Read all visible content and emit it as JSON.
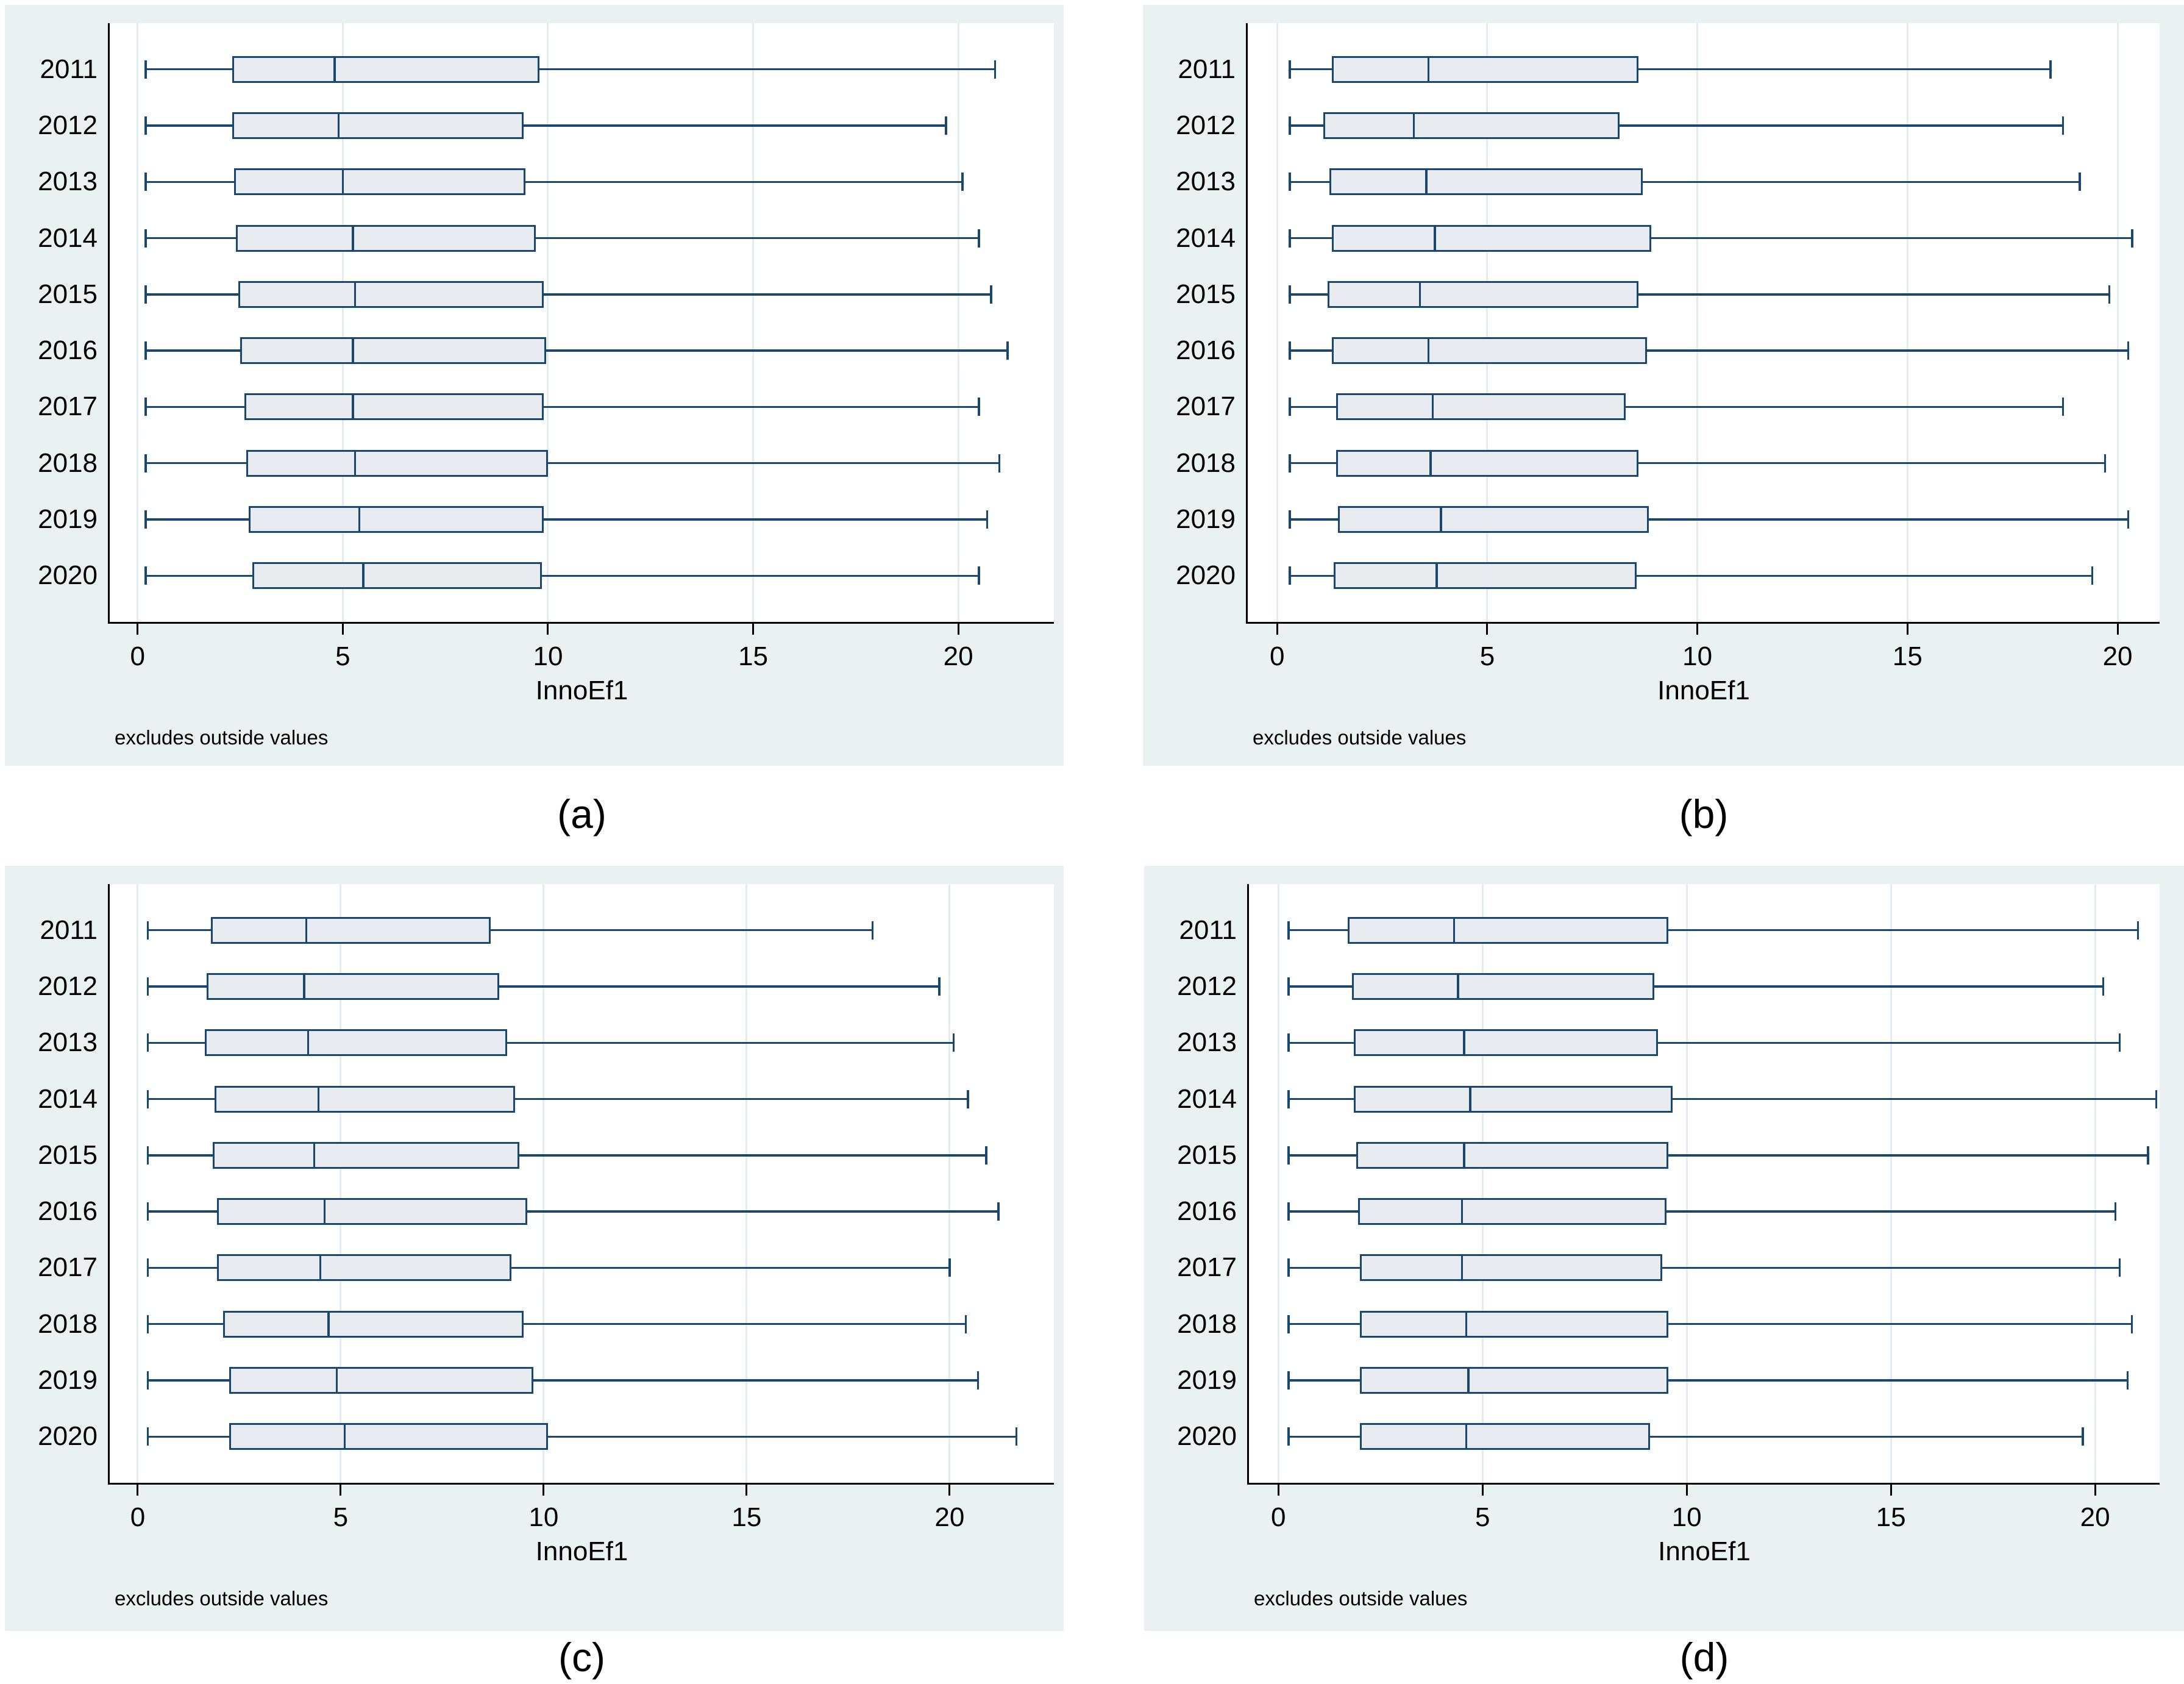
{
  "colors": {
    "panel_background": "#eaf1f3",
    "plot_background": "#ffffff",
    "grid_line": "#e2edf2",
    "axis_line": "#000000",
    "box_border": "#1a476f",
    "box_fill": "#e8ecf1",
    "text": "#000000"
  },
  "chart_data": [
    {
      "type": "box",
      "orientation": "horizontal",
      "caption": "(a)",
      "xlabel": "InnoEf1",
      "note": "excludes outside values",
      "categories": [
        "2011",
        "2012",
        "2013",
        "2014",
        "2015",
        "2016",
        "2017",
        "2018",
        "2019",
        "2020"
      ],
      "x_ticks": [
        0,
        5,
        10,
        15,
        20
      ],
      "xlim": [
        -0.68,
        22.33
      ],
      "grid": true,
      "boxes": [
        {
          "low": 0.2,
          "q1": 2.3,
          "median": 4.8,
          "q3": 9.8,
          "high": 20.9
        },
        {
          "low": 0.2,
          "q1": 2.3,
          "median": 4.9,
          "q3": 9.4,
          "high": 19.7
        },
        {
          "low": 0.2,
          "q1": 2.35,
          "median": 5.0,
          "q3": 9.45,
          "high": 20.1
        },
        {
          "low": 0.2,
          "q1": 2.4,
          "median": 5.25,
          "q3": 9.7,
          "high": 20.5
        },
        {
          "low": 0.2,
          "q1": 2.45,
          "median": 5.3,
          "q3": 9.9,
          "high": 20.8
        },
        {
          "low": 0.2,
          "q1": 2.5,
          "median": 5.25,
          "q3": 9.95,
          "high": 21.2
        },
        {
          "low": 0.2,
          "q1": 2.6,
          "median": 5.25,
          "q3": 9.9,
          "high": 20.5
        },
        {
          "low": 0.2,
          "q1": 2.65,
          "median": 5.3,
          "q3": 10.0,
          "high": 21.0
        },
        {
          "low": 0.2,
          "q1": 2.7,
          "median": 5.4,
          "q3": 9.9,
          "high": 20.7
        },
        {
          "low": 0.2,
          "q1": 2.8,
          "median": 5.5,
          "q3": 9.85,
          "high": 20.5
        }
      ]
    },
    {
      "type": "box",
      "orientation": "horizontal",
      "caption": "(b)",
      "xlabel": "InnoEf1",
      "note": "excludes outside values",
      "categories": [
        "2011",
        "2012",
        "2013",
        "2014",
        "2015",
        "2016",
        "2017",
        "2018",
        "2019",
        "2020"
      ],
      "x_ticks": [
        0,
        5,
        10,
        15,
        20
      ],
      "xlim": [
        -0.7,
        21.0
      ],
      "grid": true,
      "boxes": [
        {
          "low": 0.3,
          "q1": 1.3,
          "median": 3.6,
          "q3": 8.6,
          "high": 18.4
        },
        {
          "low": 0.3,
          "q1": 1.1,
          "median": 3.25,
          "q3": 8.15,
          "high": 18.7
        },
        {
          "low": 0.3,
          "q1": 1.25,
          "median": 3.55,
          "q3": 8.7,
          "high": 19.1
        },
        {
          "low": 0.3,
          "q1": 1.3,
          "median": 3.75,
          "q3": 8.9,
          "high": 20.35
        },
        {
          "low": 0.3,
          "q1": 1.2,
          "median": 3.4,
          "q3": 8.6,
          "high": 19.8
        },
        {
          "low": 0.3,
          "q1": 1.3,
          "median": 3.6,
          "q3": 8.8,
          "high": 20.25
        },
        {
          "low": 0.3,
          "q1": 1.4,
          "median": 3.7,
          "q3": 8.3,
          "high": 18.7
        },
        {
          "low": 0.3,
          "q1": 1.4,
          "median": 3.65,
          "q3": 8.6,
          "high": 19.7
        },
        {
          "low": 0.3,
          "q1": 1.45,
          "median": 3.9,
          "q3": 8.85,
          "high": 20.25
        },
        {
          "low": 0.3,
          "q1": 1.35,
          "median": 3.8,
          "q3": 8.55,
          "high": 19.4
        }
      ]
    },
    {
      "type": "box",
      "orientation": "horizontal",
      "caption": "(c)",
      "xlabel": "InnoEf1",
      "note": "excludes outside values",
      "categories": [
        "2011",
        "2012",
        "2013",
        "2014",
        "2015",
        "2016",
        "2017",
        "2018",
        "2019",
        "2020"
      ],
      "x_ticks": [
        0,
        5,
        10,
        15,
        20
      ],
      "xlim": [
        -0.69,
        22.57
      ],
      "grid": true,
      "boxes": [
        {
          "low": 0.25,
          "q1": 1.8,
          "median": 4.15,
          "q3": 8.7,
          "high": 18.1
        },
        {
          "low": 0.25,
          "q1": 1.7,
          "median": 4.1,
          "q3": 8.9,
          "high": 19.75
        },
        {
          "low": 0.25,
          "q1": 1.65,
          "median": 4.2,
          "q3": 9.1,
          "high": 20.1
        },
        {
          "low": 0.25,
          "q1": 1.9,
          "median": 4.45,
          "q3": 9.3,
          "high": 20.45
        },
        {
          "low": 0.25,
          "q1": 1.85,
          "median": 4.35,
          "q3": 9.4,
          "high": 20.9
        },
        {
          "low": 0.25,
          "q1": 1.95,
          "median": 4.6,
          "q3": 9.6,
          "high": 21.2
        },
        {
          "low": 0.25,
          "q1": 1.95,
          "median": 4.5,
          "q3": 9.2,
          "high": 20.0
        },
        {
          "low": 0.25,
          "q1": 2.1,
          "median": 4.7,
          "q3": 9.5,
          "high": 20.4
        },
        {
          "low": 0.25,
          "q1": 2.25,
          "median": 4.9,
          "q3": 9.75,
          "high": 20.7
        },
        {
          "low": 0.25,
          "q1": 2.25,
          "median": 5.1,
          "q3": 10.1,
          "high": 21.65
        }
      ]
    },
    {
      "type": "box",
      "orientation": "horizontal",
      "caption": "(d)",
      "xlabel": "InnoEf1",
      "note": "excludes outside values",
      "categories": [
        "2011",
        "2012",
        "2013",
        "2014",
        "2015",
        "2016",
        "2017",
        "2018",
        "2019",
        "2020"
      ],
      "x_ticks": [
        0,
        5,
        10,
        15,
        20
      ],
      "xlim": [
        -0.72,
        21.58
      ],
      "grid": true,
      "boxes": [
        {
          "low": 0.25,
          "q1": 1.7,
          "median": 4.3,
          "q3": 9.55,
          "high": 21.05
        },
        {
          "low": 0.25,
          "q1": 1.8,
          "median": 4.4,
          "q3": 9.2,
          "high": 20.2
        },
        {
          "low": 0.25,
          "q1": 1.85,
          "median": 4.55,
          "q3": 9.3,
          "high": 20.6
        },
        {
          "low": 0.25,
          "q1": 1.85,
          "median": 4.7,
          "q3": 9.65,
          "high": 21.5
        },
        {
          "low": 0.25,
          "q1": 1.9,
          "median": 4.55,
          "q3": 9.55,
          "high": 21.3
        },
        {
          "low": 0.25,
          "q1": 1.95,
          "median": 4.5,
          "q3": 9.5,
          "high": 20.5
        },
        {
          "low": 0.25,
          "q1": 2.0,
          "median": 4.5,
          "q3": 9.4,
          "high": 20.6
        },
        {
          "low": 0.25,
          "q1": 2.0,
          "median": 4.6,
          "q3": 9.55,
          "high": 20.9
        },
        {
          "low": 0.25,
          "q1": 2.0,
          "median": 4.65,
          "q3": 9.55,
          "high": 20.8
        },
        {
          "low": 0.25,
          "q1": 2.0,
          "median": 4.6,
          "q3": 9.1,
          "high": 19.7
        }
      ]
    }
  ]
}
